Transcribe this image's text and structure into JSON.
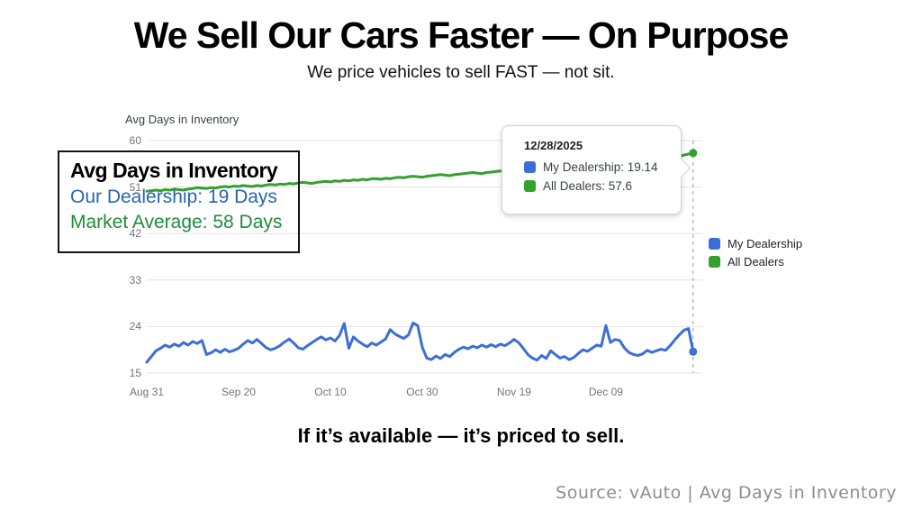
{
  "slide": {
    "title": "We Sell Our Cars Faster — On Purpose",
    "subtitle": "We price vehicles to sell FAST — not sit.",
    "statement": "If it’s available — it’s priced to sell.",
    "source": "Source: vAuto | Avg Days in Inventory"
  },
  "colors": {
    "dealership_blue": "#3c6ed5",
    "dealers_green": "#34a02e",
    "callout_blue": "#2766ae",
    "callout_green": "#1f8c3b",
    "gridline": "#e3e3e3",
    "crosshair": "#9a9a9a",
    "axis_text": "#757575"
  },
  "callout": {
    "title": "Avg Days in Inventory",
    "line1": "Our Dealership: 19 Days",
    "line2": "Market Average: 58 Days"
  },
  "tooltip": {
    "date": "12/28/2025",
    "items": [
      {
        "label": "My Dealership: 19.14",
        "color": "#3c6ed5"
      },
      {
        "label": "All Dealers: 57.6",
        "color": "#34a02e"
      }
    ]
  },
  "chart_data": {
    "type": "line",
    "title": "Avg Days in Inventory",
    "x_tick_labels": [
      "Aug 31",
      "Sep 20",
      "Oct 10",
      "Oct 30",
      "Nov 19",
      "Dec 09"
    ],
    "x_tick_days": [
      0,
      20,
      40,
      60,
      80,
      100
    ],
    "x_span_days": 121,
    "last_day": 119,
    "last_date": "12/28/2025",
    "y_ticks": [
      15,
      24,
      33,
      42,
      51,
      60
    ],
    "ylim": [
      15,
      60
    ],
    "grid": true,
    "legend_position": "right",
    "crosshair_day": 119,
    "series": [
      {
        "name": "My Dealership",
        "color": "#3c6ed5",
        "end_value": 19.14,
        "values": [
          17.1,
          18.2,
          19.3,
          19.8,
          20.4,
          20.0,
          20.6,
          20.2,
          20.9,
          20.4,
          21.1,
          20.7,
          21.3,
          18.6,
          18.9,
          19.5,
          19.0,
          19.6,
          19.1,
          19.4,
          19.8,
          20.6,
          21.3,
          20.8,
          21.5,
          20.7,
          19.9,
          19.5,
          19.8,
          20.3,
          21.0,
          21.6,
          20.8,
          19.9,
          19.6,
          20.3,
          20.9,
          21.5,
          22.0,
          21.4,
          21.8,
          21.2,
          22.3,
          24.6,
          19.8,
          22.0,
          21.2,
          20.6,
          20.1,
          20.8,
          20.4,
          21.0,
          21.6,
          23.4,
          22.6,
          22.1,
          21.7,
          22.4,
          24.7,
          24.2,
          20.0,
          17.9,
          17.6,
          18.3,
          17.8,
          18.6,
          18.2,
          19.0,
          19.6,
          20.0,
          19.7,
          20.2,
          19.9,
          20.4,
          20.0,
          20.5,
          20.1,
          20.6,
          20.3,
          20.8,
          21.5,
          20.9,
          19.8,
          18.6,
          17.9,
          17.5,
          18.4,
          17.8,
          19.3,
          18.6,
          17.9,
          18.2,
          17.6,
          18.0,
          18.8,
          19.5,
          19.2,
          19.8,
          20.4,
          20.2,
          24.2,
          20.9,
          21.5,
          21.3,
          19.9,
          19.0,
          18.6,
          18.4,
          18.7,
          19.4,
          19.0,
          19.3,
          19.6,
          19.4,
          20.3,
          21.4,
          22.4,
          23.3,
          23.6,
          19.14
        ]
      },
      {
        "name": "All Dealers",
        "color": "#34a02e",
        "end_value": 57.6,
        "values": [
          50.2,
          50.3,
          50.4,
          50.3,
          50.5,
          50.4,
          50.6,
          50.5,
          50.4,
          50.6,
          50.7,
          50.9,
          50.8,
          50.7,
          50.9,
          50.8,
          51.0,
          51.1,
          51.0,
          51.2,
          51.1,
          51.3,
          51.2,
          51.1,
          51.3,
          51.2,
          51.4,
          51.5,
          51.4,
          51.6,
          51.5,
          51.7,
          51.6,
          51.8,
          51.9,
          51.8,
          51.7,
          51.9,
          52.0,
          52.1,
          52.0,
          52.2,
          52.1,
          52.3,
          52.2,
          52.4,
          52.3,
          52.5,
          52.4,
          52.6,
          52.6,
          52.5,
          52.7,
          52.6,
          52.8,
          52.9,
          52.8,
          53.0,
          53.1,
          53.0,
          52.9,
          53.1,
          53.2,
          53.3,
          53.4,
          53.3,
          53.2,
          53.4,
          53.5,
          53.6,
          53.7,
          53.8,
          53.7,
          53.6,
          53.8,
          53.9,
          54.0,
          54.1,
          54.0,
          54.2,
          54.2,
          54.1,
          54.3,
          54.4,
          54.3,
          54.5,
          54.6,
          54.5,
          54.7,
          54.6,
          54.8,
          54.9,
          55.0,
          54.9,
          55.1,
          55.0,
          55.2,
          55.1,
          55.3,
          55.4,
          55.3,
          55.5,
          55.4,
          55.6,
          55.5,
          55.7,
          55.8,
          55.7,
          55.9,
          55.8,
          56.0,
          56.1,
          56.0,
          56.2,
          56.4,
          56.6,
          56.9,
          57.2,
          57.4,
          57.6
        ]
      }
    ]
  }
}
